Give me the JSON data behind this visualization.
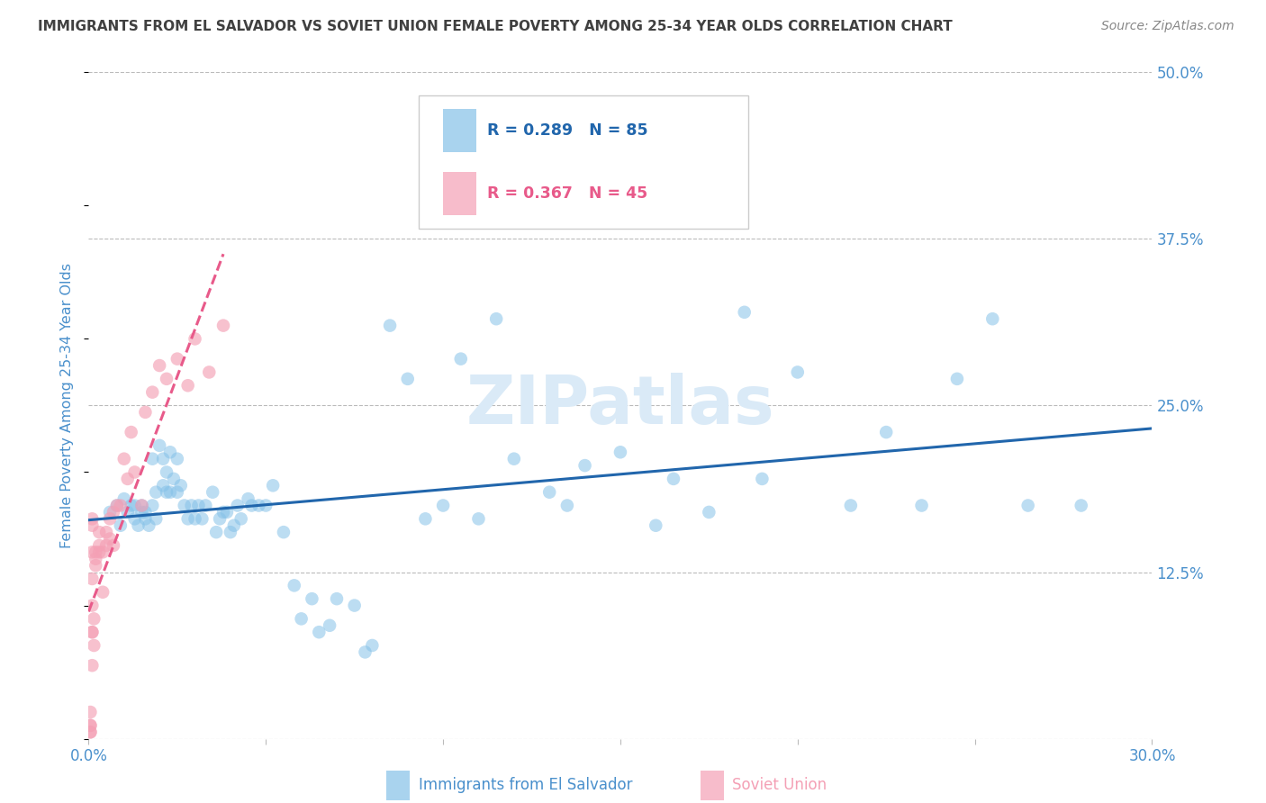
{
  "title": "IMMIGRANTS FROM EL SALVADOR VS SOVIET UNION FEMALE POVERTY AMONG 25-34 YEAR OLDS CORRELATION CHART",
  "source": "Source: ZipAtlas.com",
  "ylabel": "Female Poverty Among 25-34 Year Olds",
  "xlim": [
    0.0,
    0.3
  ],
  "ylim": [
    0.0,
    0.5
  ],
  "xticks": [
    0.0,
    0.05,
    0.1,
    0.15,
    0.2,
    0.25,
    0.3
  ],
  "xticklabels": [
    "0.0%",
    "",
    "",
    "",
    "",
    "",
    "30.0%"
  ],
  "yticks": [
    0.0,
    0.125,
    0.25,
    0.375,
    0.5
  ],
  "yticklabels": [
    "",
    "12.5%",
    "25.0%",
    "37.5%",
    "50.0%"
  ],
  "legend1_label": "Immigrants from El Salvador",
  "legend2_label": "Soviet Union",
  "R1": 0.289,
  "N1": 85,
  "R2": 0.367,
  "N2": 45,
  "dot_color_blue": "#85c1e8",
  "dot_color_pink": "#f4a0b5",
  "line_color_blue": "#2166ac",
  "line_color_pink": "#e85a8a",
  "background_color": "#ffffff",
  "watermark": "ZIPatlas",
  "watermark_color": "#daeaf7",
  "grid_color": "#bbbbbb",
  "title_color": "#404040",
  "axis_color": "#4a90cc",
  "source_color": "#888888",
  "el_salvador_x": [
    0.006,
    0.008,
    0.009,
    0.01,
    0.011,
    0.012,
    0.013,
    0.013,
    0.014,
    0.015,
    0.015,
    0.016,
    0.016,
    0.017,
    0.018,
    0.018,
    0.019,
    0.019,
    0.02,
    0.021,
    0.021,
    0.022,
    0.022,
    0.023,
    0.023,
    0.024,
    0.025,
    0.025,
    0.026,
    0.027,
    0.028,
    0.029,
    0.03,
    0.031,
    0.032,
    0.033,
    0.035,
    0.036,
    0.037,
    0.038,
    0.039,
    0.04,
    0.041,
    0.042,
    0.043,
    0.045,
    0.046,
    0.048,
    0.05,
    0.052,
    0.055,
    0.058,
    0.06,
    0.063,
    0.065,
    0.068,
    0.07,
    0.075,
    0.078,
    0.08,
    0.085,
    0.09,
    0.095,
    0.1,
    0.105,
    0.11,
    0.115,
    0.12,
    0.13,
    0.135,
    0.14,
    0.15,
    0.16,
    0.165,
    0.175,
    0.185,
    0.19,
    0.2,
    0.215,
    0.225,
    0.235,
    0.245,
    0.255,
    0.265,
    0.28
  ],
  "el_salvador_y": [
    0.17,
    0.175,
    0.16,
    0.18,
    0.17,
    0.175,
    0.165,
    0.175,
    0.16,
    0.17,
    0.175,
    0.165,
    0.17,
    0.16,
    0.21,
    0.175,
    0.185,
    0.165,
    0.22,
    0.19,
    0.21,
    0.185,
    0.2,
    0.215,
    0.185,
    0.195,
    0.185,
    0.21,
    0.19,
    0.175,
    0.165,
    0.175,
    0.165,
    0.175,
    0.165,
    0.175,
    0.185,
    0.155,
    0.165,
    0.17,
    0.17,
    0.155,
    0.16,
    0.175,
    0.165,
    0.18,
    0.175,
    0.175,
    0.175,
    0.19,
    0.155,
    0.115,
    0.09,
    0.105,
    0.08,
    0.085,
    0.105,
    0.1,
    0.065,
    0.07,
    0.31,
    0.27,
    0.165,
    0.175,
    0.285,
    0.165,
    0.315,
    0.21,
    0.185,
    0.175,
    0.205,
    0.215,
    0.16,
    0.195,
    0.17,
    0.32,
    0.195,
    0.275,
    0.175,
    0.23,
    0.175,
    0.27,
    0.315,
    0.175,
    0.175
  ],
  "soviet_x": [
    0.0005,
    0.0005,
    0.0005,
    0.0005,
    0.0005,
    0.001,
    0.001,
    0.001,
    0.001,
    0.001,
    0.001,
    0.001,
    0.001,
    0.0015,
    0.0015,
    0.002,
    0.002,
    0.002,
    0.003,
    0.003,
    0.003,
    0.004,
    0.004,
    0.005,
    0.005,
    0.006,
    0.006,
    0.007,
    0.007,
    0.008,
    0.009,
    0.01,
    0.011,
    0.012,
    0.013,
    0.015,
    0.016,
    0.018,
    0.02,
    0.022,
    0.025,
    0.028,
    0.03,
    0.034,
    0.038
  ],
  "soviet_y": [
    0.005,
    0.01,
    0.01,
    0.02,
    0.005,
    0.055,
    0.08,
    0.08,
    0.1,
    0.12,
    0.14,
    0.16,
    0.165,
    0.07,
    0.09,
    0.13,
    0.14,
    0.135,
    0.14,
    0.145,
    0.155,
    0.11,
    0.14,
    0.145,
    0.155,
    0.15,
    0.165,
    0.145,
    0.17,
    0.175,
    0.175,
    0.21,
    0.195,
    0.23,
    0.2,
    0.175,
    0.245,
    0.26,
    0.28,
    0.27,
    0.285,
    0.265,
    0.3,
    0.275,
    0.31
  ]
}
